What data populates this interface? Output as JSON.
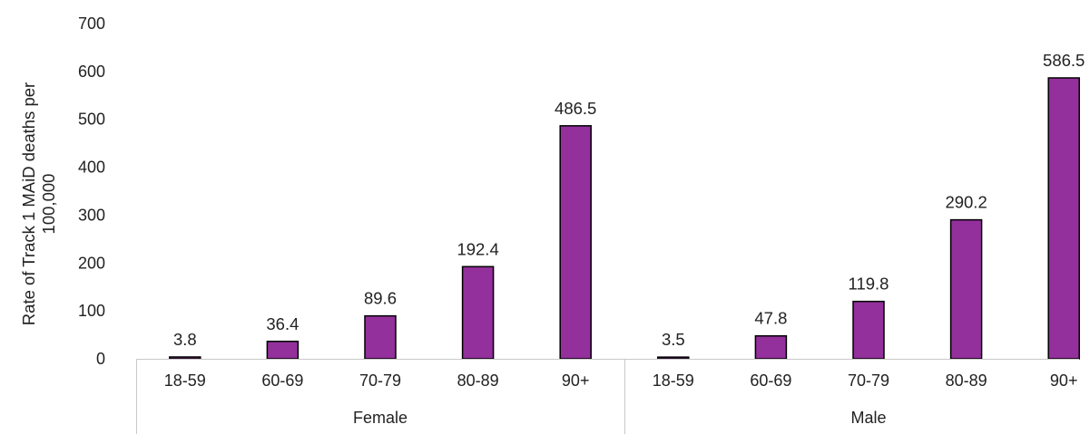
{
  "chart_data": {
    "type": "bar",
    "title": "",
    "ylabel_lines": [
      "Rate of Track 1 MAiD deaths per",
      "100,000"
    ],
    "xlabel": "",
    "ylim": [
      0,
      700
    ],
    "yticks": [
      0,
      100,
      200,
      300,
      400,
      500,
      600,
      700
    ],
    "grid": false,
    "legend": "none",
    "bar_color": "#93309b",
    "groups": [
      {
        "name": "Female",
        "categories": [
          "18-59",
          "60-69",
          "70-79",
          "80-89",
          "90+"
        ],
        "values": [
          3.8,
          36.4,
          89.6,
          192.4,
          486.5
        ],
        "labels": [
          "3.8",
          "36.4",
          "89.6",
          "192.4",
          "486.5"
        ]
      },
      {
        "name": "Male",
        "categories": [
          "18-59",
          "60-69",
          "70-79",
          "80-89",
          "90+"
        ],
        "values": [
          3.5,
          47.8,
          119.8,
          290.2,
          586.5
        ],
        "labels": [
          "3.5",
          "47.8",
          "119.8",
          "290.2",
          "586.5"
        ]
      }
    ]
  }
}
